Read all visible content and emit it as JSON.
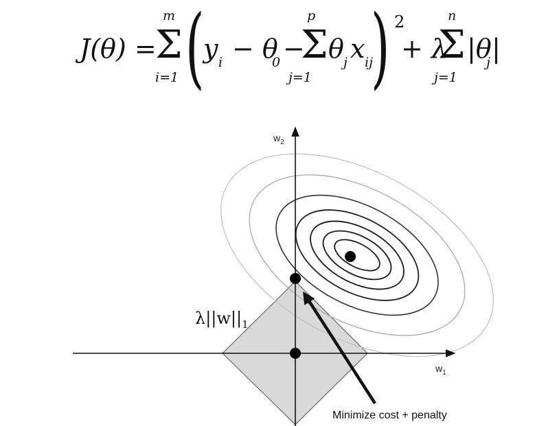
{
  "formula": {
    "lhs": "J(θ) =",
    "sum1_upper": "m",
    "sum1_lower": "i=1",
    "term_y": "y",
    "sub_i": "i",
    "minus_theta0": "− θ",
    "sub_0": "0",
    "minus": "−",
    "sum2_upper": "p",
    "sum2_lower": "j=1",
    "term_theta": "θ",
    "sub_j": "j",
    "term_x": "x",
    "sub_ij": "ij",
    "power": "2",
    "plus_lambda": "+ λ",
    "sum3_upper": "n",
    "sum3_lower": "j=1",
    "abs_theta": "|θ",
    "abs_sub_j": "j",
    "abs_close": "|",
    "sigma": "Σ"
  },
  "diagram": {
    "x_axis_label": "w",
    "x_axis_sub": "1",
    "y_axis_label": "w",
    "y_axis_sub": "2",
    "penalty_label": "λ||w||",
    "penalty_sub": "1",
    "caption": "Minimize cost + penalty"
  },
  "colors": {
    "penalty_fill": "#d9d9d9",
    "contour_light": "#bfbfbf",
    "contour_dark": "#1a1a1a",
    "axis": "#111111"
  }
}
